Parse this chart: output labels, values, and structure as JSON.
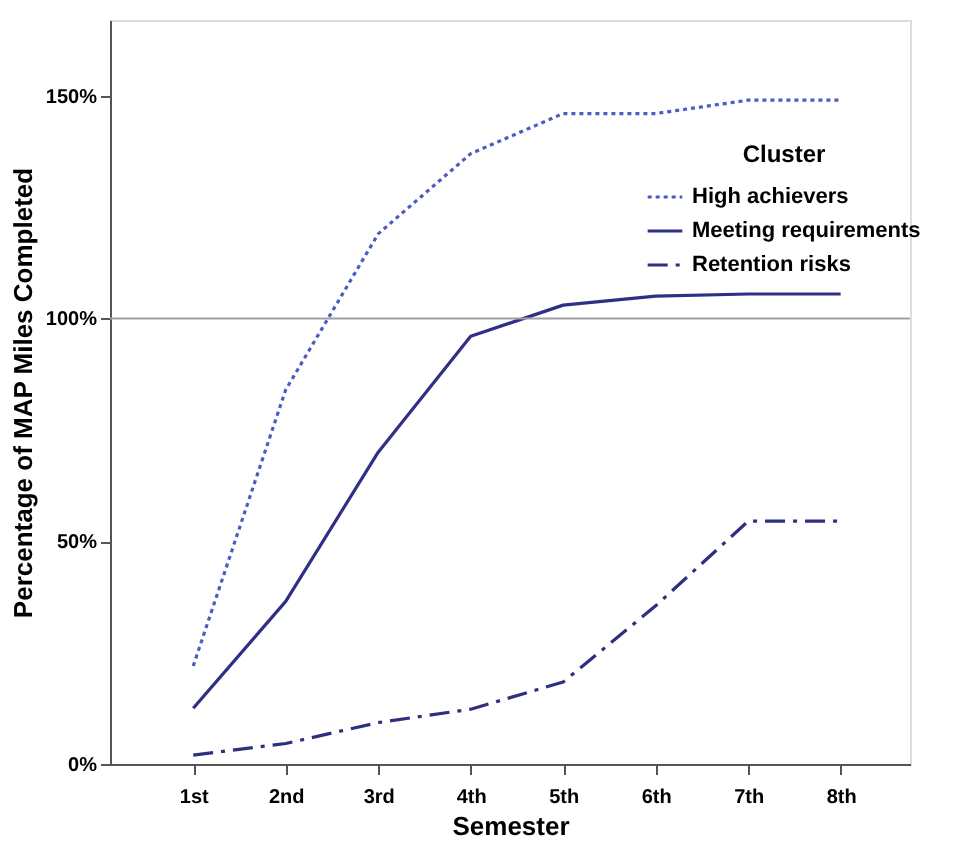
{
  "chart_data": {
    "type": "line",
    "xlabel": "Semester",
    "ylabel": "Percentage of MAP Miles Completed",
    "legend_title": "Cluster",
    "categories": [
      "1st",
      "2nd",
      "3rd",
      "4th",
      "5th",
      "6th",
      "7th",
      "8th"
    ],
    "series": [
      {
        "name": "High achievers",
        "color": "#4a5cc4",
        "line_style": "dotted",
        "values": [
          22,
          84,
          119,
          137,
          146,
          146,
          149,
          149
        ]
      },
      {
        "name": "Meeting requirements",
        "color": "#2f2f85",
        "line_style": "solid",
        "values": [
          12.5,
          36.5,
          70,
          96,
          103,
          105,
          105.5,
          105.5
        ]
      },
      {
        "name": "Retention risks",
        "color": "#2f2f80",
        "line_style": "dashed",
        "values": [
          2,
          4.6,
          9.3,
          12.3,
          18.4,
          35.5,
          54.5,
          54.5
        ]
      }
    ],
    "ylim": [
      0,
      167
    ],
    "yticks": [
      {
        "value": 0,
        "label": "0%"
      },
      {
        "value": 50,
        "label": "50%"
      },
      {
        "value": 100,
        "label": "100%"
      },
      {
        "value": 150,
        "label": "150%"
      }
    ],
    "ref_lines": [
      {
        "axis": "y",
        "value": 100,
        "color": "#a0a0a0"
      }
    ],
    "grid": false,
    "legend": "top right",
    "marker": "none"
  }
}
